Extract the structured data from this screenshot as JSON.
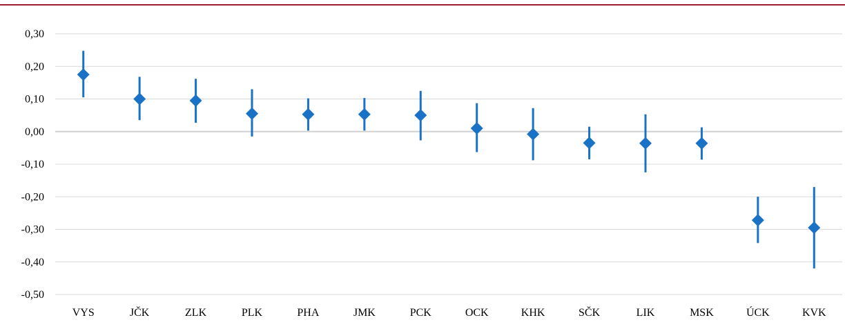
{
  "chart_data": {
    "type": "scatter",
    "title": "",
    "xlabel": "",
    "ylabel": "",
    "ylim": [
      -0.5,
      0.3
    ],
    "yticks": [
      0.3,
      0.2,
      0.1,
      0.0,
      -0.1,
      -0.2,
      -0.3,
      -0.4,
      -0.5
    ],
    "ytick_labels": [
      "0,30",
      "0,20",
      "0,10",
      "0,00",
      "-0,10",
      "-0,20",
      "-0,30",
      "-0,40",
      "-0,50"
    ],
    "categories": [
      "VYS",
      "JČK",
      "ZLK",
      "PLK",
      "PHA",
      "JMK",
      "PCK",
      "OCK",
      "KHK",
      "SČK",
      "LIK",
      "MSK",
      "ÚCK",
      "KVK"
    ],
    "values": [
      0.175,
      0.1,
      0.095,
      0.055,
      0.053,
      0.053,
      0.05,
      0.01,
      -0.008,
      -0.035,
      -0.036,
      -0.036,
      -0.272,
      -0.295
    ],
    "error_low": [
      0.105,
      0.035,
      0.027,
      -0.015,
      0.003,
      0.003,
      -0.027,
      -0.063,
      -0.088,
      -0.085,
      -0.125,
      -0.086,
      -0.342,
      -0.42
    ],
    "error_high": [
      0.248,
      0.168,
      0.162,
      0.13,
      0.102,
      0.103,
      0.125,
      0.087,
      0.072,
      0.015,
      0.053,
      0.013,
      -0.2,
      -0.17
    ],
    "grid": true,
    "legend": false,
    "colors": {
      "marker": "#1a72c6",
      "grid": "#d9d9d9",
      "zero_line": "#d0d0d0",
      "top_rule": "#9b1b30"
    }
  }
}
